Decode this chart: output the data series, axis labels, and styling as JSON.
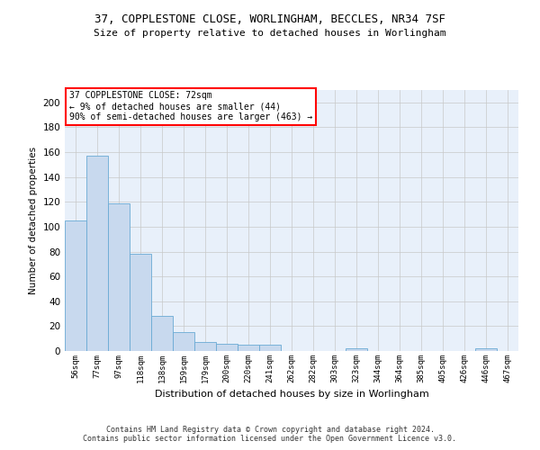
{
  "title1": "37, COPPLESTONE CLOSE, WORLINGHAM, BECCLES, NR34 7SF",
  "title2": "Size of property relative to detached houses in Worlingham",
  "xlabel": "Distribution of detached houses by size in Worlingham",
  "ylabel": "Number of detached properties",
  "bar_color": "#c8d9ee",
  "bar_edge_color": "#6aaad4",
  "bg_color": "#e8f0fa",
  "categories": [
    "56sqm",
    "77sqm",
    "97sqm",
    "118sqm",
    "138sqm",
    "159sqm",
    "179sqm",
    "200sqm",
    "220sqm",
    "241sqm",
    "262sqm",
    "282sqm",
    "303sqm",
    "323sqm",
    "344sqm",
    "364sqm",
    "385sqm",
    "405sqm",
    "426sqm",
    "446sqm",
    "467sqm"
  ],
  "values": [
    105,
    157,
    119,
    78,
    28,
    15,
    7,
    6,
    5,
    5,
    0,
    0,
    0,
    2,
    0,
    0,
    0,
    0,
    0,
    2,
    0
  ],
  "ylim": [
    0,
    210
  ],
  "yticks": [
    0,
    20,
    40,
    60,
    80,
    100,
    120,
    140,
    160,
    180,
    200
  ],
  "annotation_text": "37 COPPLESTONE CLOSE: 72sqm\n← 9% of detached houses are smaller (44)\n90% of semi-detached houses are larger (463) →",
  "annotation_box_color": "white",
  "annotation_box_edge": "red",
  "footer_text": "Contains HM Land Registry data © Crown copyright and database right 2024.\nContains public sector information licensed under the Open Government Licence v3.0.",
  "grid_color": "#c8c8c8"
}
